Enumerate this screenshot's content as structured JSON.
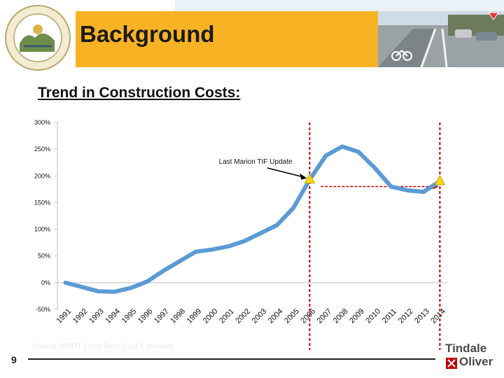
{
  "slide": {
    "title": "Background",
    "subtitle": "Trend in Construction Costs:",
    "page_number": "9",
    "source_note": "Source: FDOT Long Term Cost Estimates",
    "brand_line1": "Tindale",
    "brand_line2": "Oliver"
  },
  "colors": {
    "orange_band": "#f8b324",
    "line": "#5b9bd5",
    "marker_line": "#c00000",
    "triangle": "#ffd700"
  },
  "chart_data": {
    "type": "line",
    "title": "",
    "xlabel": "",
    "ylabel": "",
    "ylim": [
      -50,
      300
    ],
    "y_ticks": [
      "-50%",
      "0%",
      "50%",
      "100%",
      "150%",
      "200%",
      "250%",
      "300%"
    ],
    "x": [
      "1991",
      "1992",
      "1993",
      "1994",
      "1995",
      "1996",
      "1997",
      "1998",
      "1999",
      "2000",
      "2001",
      "2002",
      "2003",
      "2004",
      "2005",
      "2006",
      "2007",
      "2008",
      "2009",
      "2010",
      "2011",
      "2012",
      "2013",
      "2014"
    ],
    "series": [
      {
        "name": "",
        "values": [
          0,
          -8,
          -16,
          -17,
          -10,
          2,
          22,
          40,
          58,
          62,
          68,
          78,
          93,
          108,
          140,
          193,
          238,
          255,
          245,
          215,
          180,
          173,
          170,
          190
        ]
      }
    ],
    "grid": false,
    "annotation": {
      "text": "Last Marion TIF Update",
      "year": "2006"
    },
    "vertical_markers": [
      "2006",
      "2014"
    ],
    "highlight_points": [
      "2006",
      "2014"
    ]
  }
}
